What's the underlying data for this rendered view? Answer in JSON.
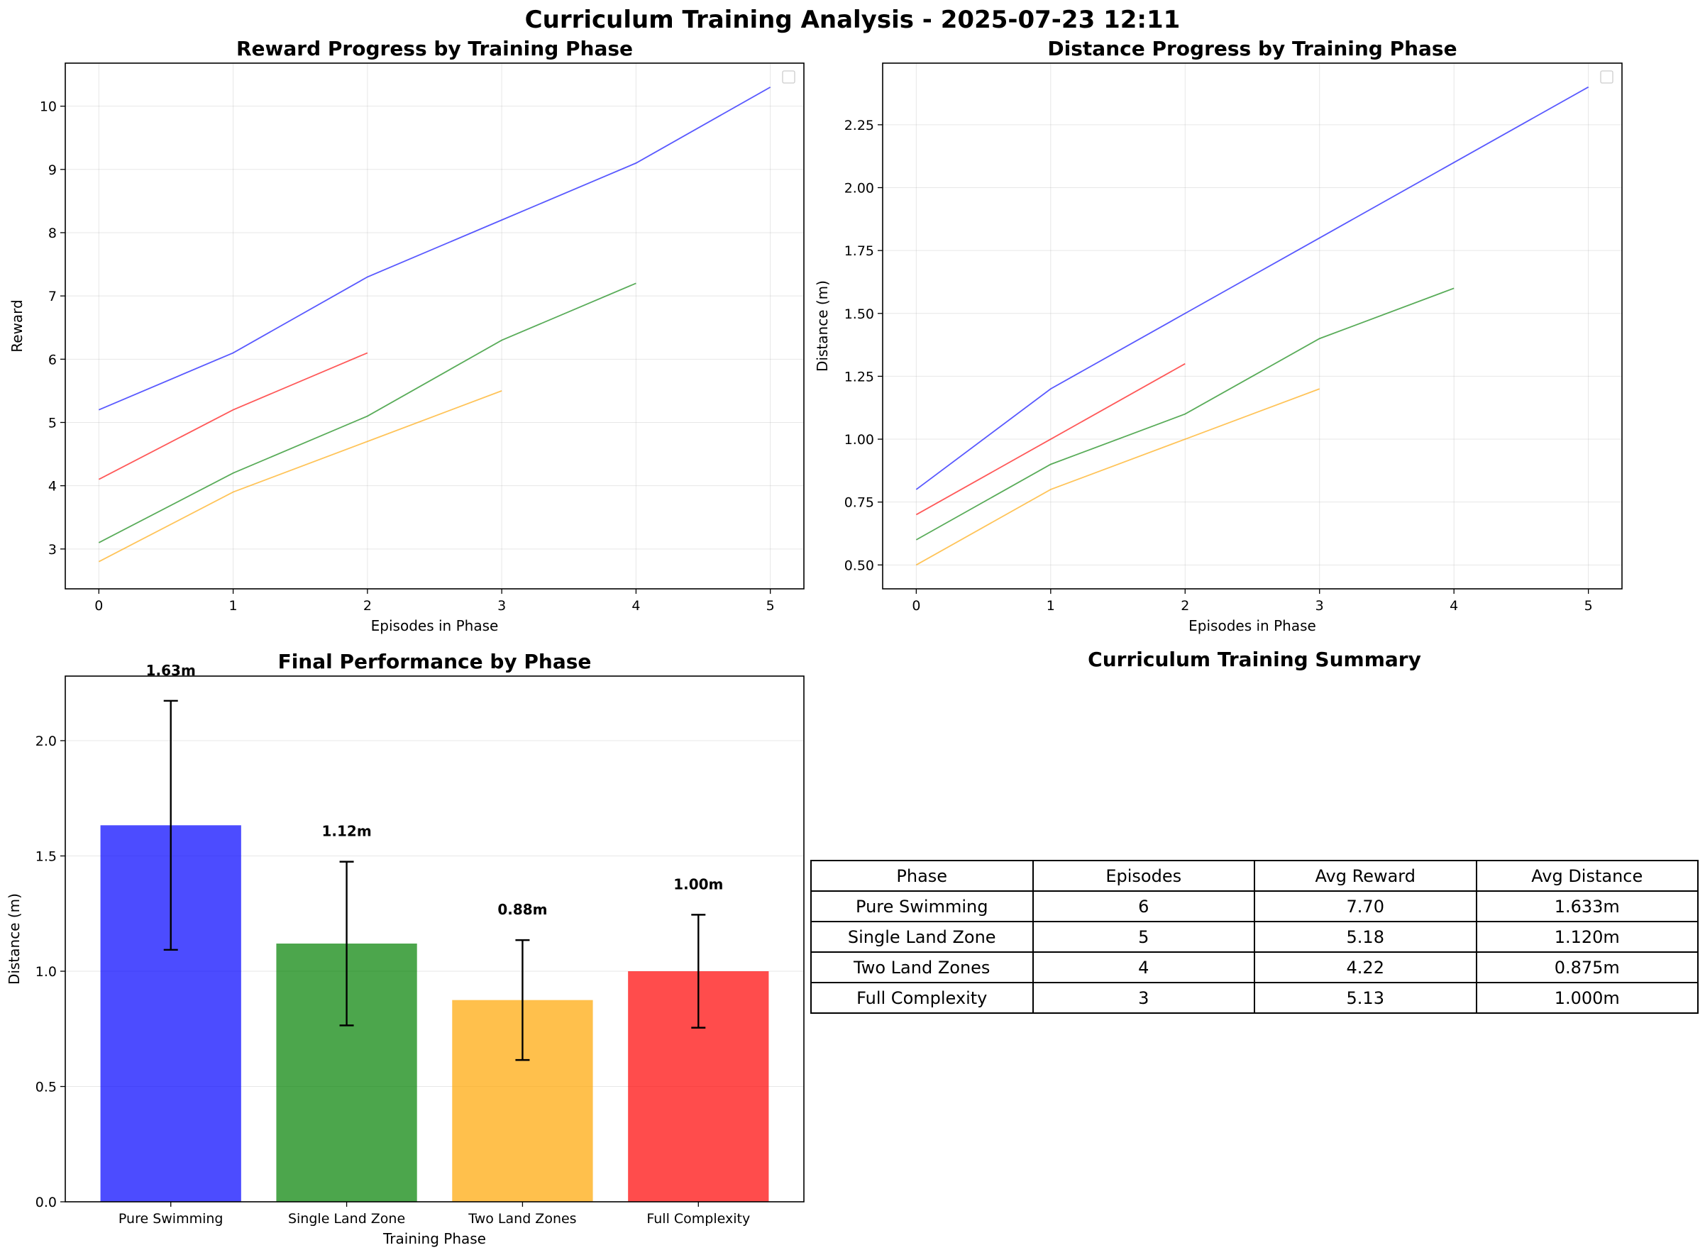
{
  "page_title": "Curriculum Training Analysis - 2025-07-23 12:11",
  "chart_data": [
    {
      "id": "reward",
      "type": "line",
      "title": "Reward Progress by Training Phase",
      "xlabel": "Episodes in Phase",
      "ylabel": "Reward",
      "xlim": [
        -0.25,
        5.25
      ],
      "ylim": [
        2.37,
        10.68
      ],
      "xticks": [
        0,
        1,
        2,
        3,
        4,
        5
      ],
      "yticks": [
        3,
        4,
        5,
        6,
        7,
        8,
        9,
        10
      ],
      "grid": true,
      "legend": "top-right (empty)",
      "series": [
        {
          "color": "#0000ff",
          "x": [
            0,
            1,
            2,
            3,
            4,
            5
          ],
          "y": [
            5.2,
            6.1,
            7.3,
            8.2,
            9.1,
            10.3
          ]
        },
        {
          "color": "#008000",
          "x": [
            0,
            1,
            2,
            3,
            4
          ],
          "y": [
            3.1,
            4.2,
            5.1,
            6.3,
            7.2
          ]
        },
        {
          "color": "#ffa500",
          "x": [
            0,
            1,
            2,
            3
          ],
          "y": [
            2.8,
            3.9,
            4.7,
            5.5
          ]
        },
        {
          "color": "#ff0000",
          "x": [
            0,
            1,
            2
          ],
          "y": [
            4.1,
            5.2,
            6.1
          ]
        }
      ]
    },
    {
      "id": "distance",
      "type": "line",
      "title": "Distance Progress by Training Phase",
      "xlabel": "Episodes in Phase",
      "ylabel": "Distance (m)",
      "xlim": [
        -0.25,
        5.25
      ],
      "ylim": [
        0.405,
        2.495
      ],
      "xticks": [
        0,
        1,
        2,
        3,
        4,
        5
      ],
      "yticks": [
        "0.50",
        "0.75",
        "1.00",
        "1.25",
        "1.50",
        "1.75",
        "2.00",
        "2.25"
      ],
      "grid": true,
      "legend": "top-right (empty)",
      "series": [
        {
          "color": "#0000ff",
          "x": [
            0,
            1,
            2,
            3,
            4,
            5
          ],
          "y": [
            0.8,
            1.2,
            1.5,
            1.8,
            2.1,
            2.4
          ]
        },
        {
          "color": "#008000",
          "x": [
            0,
            1,
            2,
            3,
            4
          ],
          "y": [
            0.6,
            0.9,
            1.1,
            1.4,
            1.6
          ]
        },
        {
          "color": "#ffa500",
          "x": [
            0,
            1,
            2,
            3
          ],
          "y": [
            0.5,
            0.8,
            1.0,
            1.2
          ]
        },
        {
          "color": "#ff0000",
          "x": [
            0,
            1,
            2
          ],
          "y": [
            0.7,
            1.0,
            1.3
          ]
        }
      ]
    },
    {
      "id": "final",
      "type": "bar",
      "title": "Final Performance by Phase",
      "xlabel": "Training Phase",
      "ylabel": "Distance (m)",
      "ylim": [
        0,
        2.28
      ],
      "yticks": [
        "0.0",
        "0.5",
        "1.0",
        "1.5",
        "2.0"
      ],
      "grid": true,
      "categories": [
        "Pure Swimming",
        "Single Land Zone",
        "Two Land Zones",
        "Full Complexity"
      ],
      "values": [
        1.633,
        1.12,
        0.875,
        1.0
      ],
      "errors": [
        0.54,
        0.355,
        0.26,
        0.245
      ],
      "labels": [
        "1.63m",
        "1.12m",
        "0.88m",
        "1.00m"
      ],
      "colors": [
        "#0000ff",
        "#008000",
        "#ffa500",
        "#ff0000"
      ]
    }
  ],
  "summary": {
    "title": "Curriculum Training Summary",
    "headers": [
      "Phase",
      "Episodes",
      "Avg Reward",
      "Avg Distance"
    ],
    "rows": [
      [
        "Pure Swimming",
        "6",
        "7.70",
        "1.633m"
      ],
      [
        "Single Land Zone",
        "5",
        "5.18",
        "1.120m"
      ],
      [
        "Two Land Zones",
        "4",
        "4.22",
        "0.875m"
      ],
      [
        "Full Complexity",
        "3",
        "5.13",
        "1.000m"
      ]
    ]
  }
}
